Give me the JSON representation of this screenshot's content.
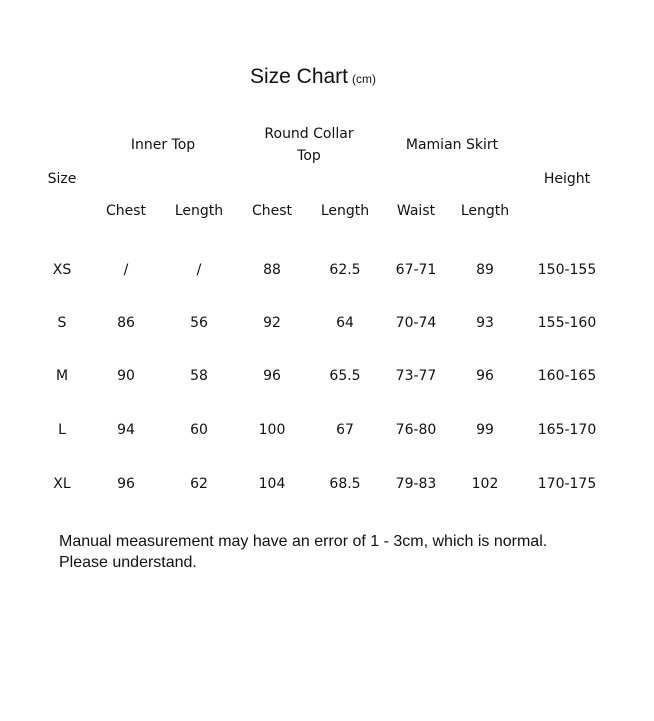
{
  "title": "Size Chart",
  "unit": "(cm)",
  "headers": {
    "size": "Size",
    "height": "Height",
    "groups": [
      {
        "label": "Inner Top",
        "lines": [
          "Inner Top"
        ]
      },
      {
        "label": "Round Collar Top",
        "lines": [
          "Round Collar",
          "Top"
        ]
      },
      {
        "label": "Mamian Skirt",
        "lines": [
          "Mamian Skirt"
        ]
      }
    ],
    "columns": [
      "Chest",
      "Length",
      "Chest",
      "Length",
      "Waist",
      "Length"
    ]
  },
  "rows": [
    [
      "XS",
      "/",
      "/",
      "88",
      "62.5",
      "67-71",
      "89",
      "150-155"
    ],
    [
      "S",
      "86",
      "56",
      "92",
      "64",
      "70-74",
      "93",
      "155-160"
    ],
    [
      "M",
      "90",
      "58",
      "96",
      "65.5",
      "73-77",
      "96",
      "160-165"
    ],
    [
      "L",
      "94",
      "60",
      "100",
      "67",
      "76-80",
      "99",
      "165-170"
    ],
    [
      "XL",
      "96",
      "62",
      "104",
      "68.5",
      "79-83",
      "102",
      "170-175"
    ]
  ],
  "note": [
    "Manual measurement may have an error of 1 - 3cm, which is normal.",
    "Please understand."
  ]
}
